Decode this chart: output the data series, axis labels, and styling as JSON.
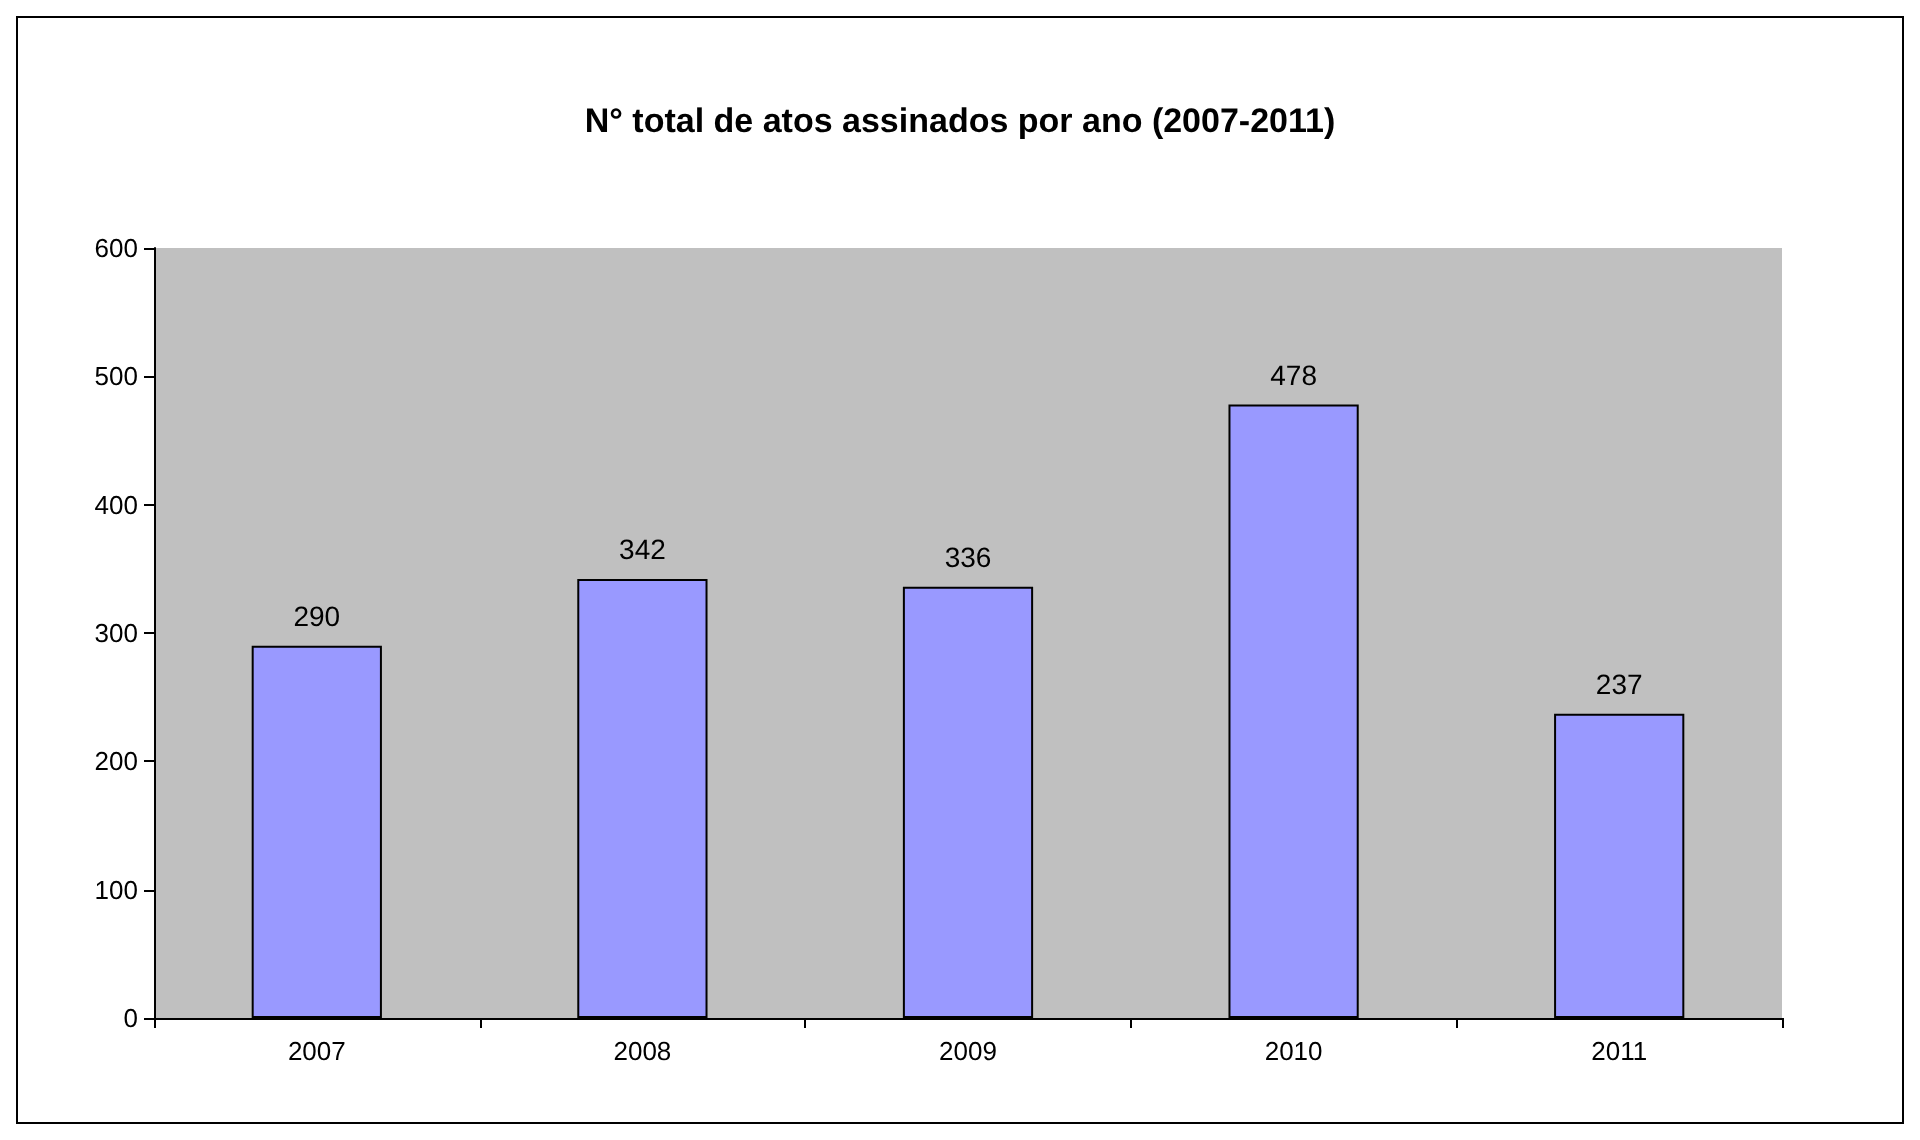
{
  "chart_data": {
    "type": "bar",
    "title": "N° total de atos assinados por ano (2007-2011)",
    "categories": [
      "2007",
      "2008",
      "2009",
      "2010",
      "2011"
    ],
    "values": [
      290,
      342,
      336,
      478,
      237
    ],
    "color": "#9999ff",
    "ylim": [
      0,
      600
    ],
    "yticks": [
      0,
      100,
      200,
      300,
      400,
      500,
      600
    ],
    "grid": false,
    "data_labels": true
  }
}
